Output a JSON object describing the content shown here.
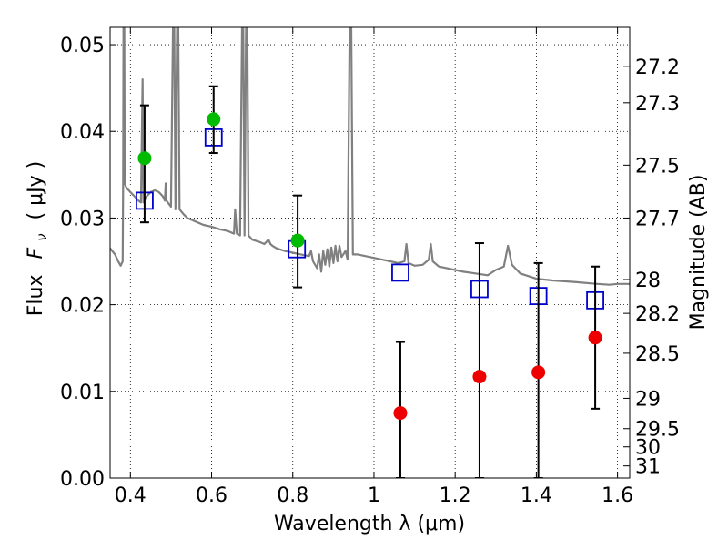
{
  "chart_data": {
    "type": "scatter",
    "xlabel": "Wavelength  λ (μm)",
    "ylabel": "Flux  F_ν  ( μJy )",
    "ylabel_parts": {
      "prefix": "Flux",
      "symbol": "F",
      "subscript": "ν",
      "unit": "( μJy )"
    },
    "y2label": "Magnitude (AB)",
    "xlim": [
      0.35,
      1.63
    ],
    "ylim": [
      0.0,
      0.052
    ],
    "grid": true,
    "x_ticks": [
      {
        "value": 0.4,
        "label": "0.4"
      },
      {
        "value": 0.6,
        "label": "0.6"
      },
      {
        "value": 0.8,
        "label": "0.8"
      },
      {
        "value": 1.0,
        "label": "1"
      },
      {
        "value": 1.2,
        "label": "1.2"
      },
      {
        "value": 1.4,
        "label": "1.4"
      },
      {
        "value": 1.6,
        "label": "1.6"
      }
    ],
    "y_ticks": [
      {
        "value": 0.0,
        "label": "0.00"
      },
      {
        "value": 0.01,
        "label": "0.01"
      },
      {
        "value": 0.02,
        "label": "0.02"
      },
      {
        "value": 0.03,
        "label": "0.03"
      },
      {
        "value": 0.04,
        "label": "0.04"
      },
      {
        "value": 0.05,
        "label": "0.05"
      }
    ],
    "y2_ticks": [
      {
        "label": "27.2",
        "flux": 0.0475
      },
      {
        "label": "27.3",
        "flux": 0.0433
      },
      {
        "label": "27.5",
        "flux": 0.0361
      },
      {
        "label": "27.7",
        "flux": 0.03
      },
      {
        "label": "28",
        "flux": 0.0229
      },
      {
        "label": "28.2",
        "flux": 0.019
      },
      {
        "label": "28.5",
        "flux": 0.0144
      },
      {
        "label": "29",
        "flux": 0.0092
      },
      {
        "label": "29.5",
        "flux": 0.0057
      },
      {
        "label": "30",
        "flux": 0.0036
      },
      {
        "label": "31",
        "flux": 0.0014
      }
    ],
    "series": [
      {
        "kind": "line",
        "color": "#808080",
        "points": [
          [
            0.35,
            0.0265
          ],
          [
            0.362,
            0.0258
          ],
          [
            0.37,
            0.025
          ],
          [
            0.376,
            0.0245
          ],
          [
            0.381,
            0.025
          ],
          [
            0.382,
            0.034
          ],
          [
            0.383,
            0.052
          ],
          [
            0.385,
            0.052
          ],
          [
            0.386,
            0.034
          ],
          [
            0.39,
            0.0335
          ],
          [
            0.4,
            0.033
          ],
          [
            0.41,
            0.0325
          ],
          [
            0.42,
            0.032
          ],
          [
            0.426,
            0.0318
          ],
          [
            0.43,
            0.046
          ],
          [
            0.432,
            0.0318
          ],
          [
            0.44,
            0.0325
          ],
          [
            0.45,
            0.033
          ],
          [
            0.46,
            0.0332
          ],
          [
            0.47,
            0.033
          ],
          [
            0.48,
            0.0325
          ],
          [
            0.485,
            0.032
          ],
          [
            0.487,
            0.034
          ],
          [
            0.489,
            0.032
          ],
          [
            0.5,
            0.0313
          ],
          [
            0.505,
            0.052
          ],
          [
            0.508,
            0.052
          ],
          [
            0.511,
            0.031
          ],
          [
            0.515,
            0.052
          ],
          [
            0.518,
            0.052
          ],
          [
            0.521,
            0.031
          ],
          [
            0.53,
            0.0305
          ],
          [
            0.54,
            0.03
          ],
          [
            0.55,
            0.0298
          ],
          [
            0.56,
            0.0296
          ],
          [
            0.58,
            0.0292
          ],
          [
            0.6,
            0.029
          ],
          [
            0.62,
            0.0287
          ],
          [
            0.64,
            0.0285
          ],
          [
            0.655,
            0.0282
          ],
          [
            0.658,
            0.031
          ],
          [
            0.662,
            0.0282
          ],
          [
            0.67,
            0.028
          ],
          [
            0.675,
            0.052
          ],
          [
            0.678,
            0.052
          ],
          [
            0.681,
            0.028
          ],
          [
            0.685,
            0.052
          ],
          [
            0.688,
            0.052
          ],
          [
            0.691,
            0.028
          ],
          [
            0.7,
            0.0275
          ],
          [
            0.72,
            0.0272
          ],
          [
            0.73,
            0.027
          ],
          [
            0.74,
            0.0275
          ],
          [
            0.745,
            0.027
          ],
          [
            0.75,
            0.0268
          ],
          [
            0.76,
            0.0265
          ],
          [
            0.78,
            0.0262
          ],
          [
            0.8,
            0.026
          ],
          [
            0.82,
            0.0258
          ],
          [
            0.84,
            0.0256
          ],
          [
            0.845,
            0.0262
          ],
          [
            0.85,
            0.025
          ],
          [
            0.86,
            0.0242
          ],
          [
            0.865,
            0.0258
          ],
          [
            0.87,
            0.0238
          ],
          [
            0.875,
            0.0262
          ],
          [
            0.88,
            0.0246
          ],
          [
            0.885,
            0.0264
          ],
          [
            0.89,
            0.0244
          ],
          [
            0.895,
            0.0266
          ],
          [
            0.9,
            0.0248
          ],
          [
            0.905,
            0.0268
          ],
          [
            0.91,
            0.025
          ],
          [
            0.915,
            0.0268
          ],
          [
            0.92,
            0.0255
          ],
          [
            0.93,
            0.0262
          ],
          [
            0.935,
            0.0252
          ],
          [
            0.94,
            0.052
          ],
          [
            0.944,
            0.052
          ],
          [
            0.948,
            0.0258
          ],
          [
            0.96,
            0.0258
          ],
          [
            0.98,
            0.0256
          ],
          [
            1.0,
            0.0254
          ],
          [
            1.02,
            0.0252
          ],
          [
            1.04,
            0.025
          ],
          [
            1.06,
            0.0248
          ],
          [
            1.075,
            0.025
          ],
          [
            1.08,
            0.027
          ],
          [
            1.085,
            0.0248
          ],
          [
            1.1,
            0.0245
          ],
          [
            1.12,
            0.0246
          ],
          [
            1.135,
            0.0252
          ],
          [
            1.14,
            0.027
          ],
          [
            1.145,
            0.025
          ],
          [
            1.16,
            0.0244
          ],
          [
            1.18,
            0.0242
          ],
          [
            1.2,
            0.024
          ],
          [
            1.22,
            0.0238
          ],
          [
            1.25,
            0.0236
          ],
          [
            1.28,
            0.0234
          ],
          [
            1.3,
            0.024
          ],
          [
            1.32,
            0.0244
          ],
          [
            1.33,
            0.0268
          ],
          [
            1.34,
            0.0246
          ],
          [
            1.36,
            0.0236
          ],
          [
            1.4,
            0.023
          ],
          [
            1.44,
            0.0228
          ],
          [
            1.5,
            0.0226
          ],
          [
            1.55,
            0.0224
          ],
          [
            1.58,
            0.0223
          ],
          [
            1.6,
            0.0224
          ],
          [
            1.63,
            0.0224
          ]
        ]
      },
      {
        "kind": "squares",
        "color": "#0000cc",
        "points": [
          [
            0.435,
            0.032
          ],
          [
            0.605,
            0.0393
          ],
          [
            0.81,
            0.0264
          ],
          [
            1.065,
            0.0237
          ],
          [
            1.26,
            0.0218
          ],
          [
            1.405,
            0.021
          ],
          [
            1.545,
            0.0205
          ]
        ]
      },
      {
        "kind": "errorbar-points",
        "points": [
          {
            "x": 0.435,
            "y": 0.0369,
            "low": 0.0295,
            "high": 0.043,
            "color": "#00bb00"
          },
          {
            "x": 0.605,
            "y": 0.0414,
            "low": 0.0375,
            "high": 0.0452,
            "color": "#00bb00"
          },
          {
            "x": 0.812,
            "y": 0.0274,
            "low": 0.022,
            "high": 0.0326,
            "color": "#00bb00"
          },
          {
            "x": 1.065,
            "y": 0.0075,
            "low": 0.0,
            "high": 0.0157,
            "color": "#ee0000"
          },
          {
            "x": 1.26,
            "y": 0.0117,
            "low": 0.0,
            "high": 0.0271,
            "color": "#ee0000"
          },
          {
            "x": 1.405,
            "y": 0.0122,
            "low": 0.0,
            "high": 0.0248,
            "color": "#ee0000"
          },
          {
            "x": 1.545,
            "y": 0.0162,
            "low": 0.008,
            "high": 0.0244,
            "color": "#ee0000"
          }
        ]
      }
    ]
  }
}
